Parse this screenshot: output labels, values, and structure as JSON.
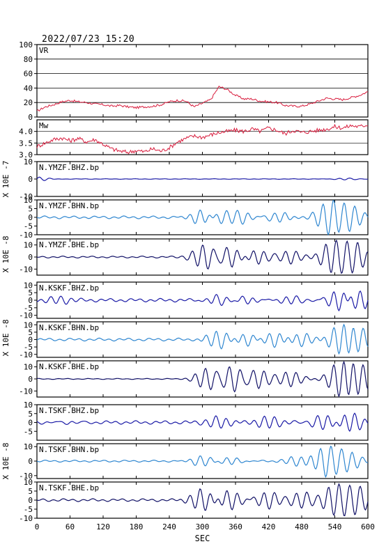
{
  "timestamp": "2022/07/23 15:20",
  "chart_data": {
    "type": "line",
    "xlabel": "SEC",
    "xlim": [
      0,
      600
    ],
    "xticks": [
      "0",
      "60",
      "120",
      "180",
      "240",
      "300",
      "360",
      "420",
      "480",
      "540",
      "600"
    ],
    "panels": [
      {
        "label": "VR",
        "ylim": [
          0,
          100
        ],
        "yticks": [
          "100",
          "80",
          "60",
          "40",
          "20",
          "0"
        ],
        "color": "#d81b3c",
        "series": [
          [
            0,
            8
          ],
          [
            15,
            14
          ],
          [
            30,
            17
          ],
          [
            45,
            21
          ],
          [
            60,
            23
          ],
          [
            75,
            21
          ],
          [
            90,
            20
          ],
          [
            105,
            18
          ],
          [
            120,
            17
          ],
          [
            135,
            15
          ],
          [
            150,
            16
          ],
          [
            165,
            14
          ],
          [
            180,
            13
          ],
          [
            195,
            14
          ],
          [
            210,
            15
          ],
          [
            225,
            17
          ],
          [
            240,
            21
          ],
          [
            255,
            23
          ],
          [
            270,
            22
          ],
          [
            285,
            14
          ],
          [
            300,
            19
          ],
          [
            315,
            24
          ],
          [
            330,
            42
          ],
          [
            345,
            38
          ],
          [
            360,
            30
          ],
          [
            375,
            25
          ],
          [
            390,
            25
          ],
          [
            405,
            22
          ],
          [
            420,
            21
          ],
          [
            435,
            20
          ],
          [
            450,
            16
          ],
          [
            465,
            15
          ],
          [
            480,
            15
          ],
          [
            495,
            18
          ],
          [
            510,
            22
          ],
          [
            525,
            26
          ],
          [
            540,
            25
          ],
          [
            555,
            24
          ],
          [
            570,
            27
          ],
          [
            585,
            30
          ],
          [
            600,
            35
          ]
        ]
      },
      {
        "label": "Mw",
        "ylim": [
          3.0,
          4.5
        ],
        "yticks": [
          "4.0",
          "3.5",
          "3.0"
        ],
        "color": "#d81b3c",
        "series": [
          [
            0,
            3.35
          ],
          [
            15,
            3.5
          ],
          [
            30,
            3.65
          ],
          [
            45,
            3.72
          ],
          [
            60,
            3.6
          ],
          [
            75,
            3.7
          ],
          [
            90,
            3.55
          ],
          [
            105,
            3.65
          ],
          [
            120,
            3.45
          ],
          [
            135,
            3.25
          ],
          [
            150,
            3.15
          ],
          [
            165,
            3.1
          ],
          [
            180,
            3.18
          ],
          [
            195,
            3.12
          ],
          [
            210,
            3.25
          ],
          [
            225,
            3.15
          ],
          [
            240,
            3.3
          ],
          [
            255,
            3.55
          ],
          [
            270,
            3.7
          ],
          [
            285,
            3.8
          ],
          [
            300,
            3.75
          ],
          [
            315,
            3.85
          ],
          [
            330,
            3.95
          ],
          [
            345,
            4.0
          ],
          [
            360,
            4.05
          ],
          [
            375,
            4.0
          ],
          [
            390,
            4.1
          ],
          [
            405,
            4.0
          ],
          [
            420,
            4.15
          ],
          [
            435,
            4.05
          ],
          [
            450,
            3.9
          ],
          [
            465,
            4.05
          ],
          [
            480,
            3.95
          ],
          [
            495,
            4.0
          ],
          [
            510,
            4.05
          ],
          [
            525,
            4.1
          ],
          [
            540,
            4.2
          ],
          [
            555,
            4.15
          ],
          [
            570,
            4.25
          ],
          [
            585,
            4.2
          ],
          [
            600,
            4.3
          ]
        ]
      },
      {
        "label": "N.YMZF.BHZ.bp",
        "ylim": [
          -10,
          10
        ],
        "yticks": [
          "10",
          "0",
          "-10"
        ],
        "color": "#1a1aa6",
        "events": [
          {
            "t": 0,
            "a": 1.2
          },
          {
            "t": 560,
            "a": 0.6
          }
        ],
        "bg": 0.15
      },
      {
        "label": "N.YMZF.BHN.bp",
        "ylim": [
          -10,
          10
        ],
        "yticks": [
          "10",
          "5",
          "0",
          "-5",
          "-10"
        ],
        "color": "#2e86d0",
        "events": [
          {
            "t": 300,
            "a": 5
          },
          {
            "t": 330,
            "a": 4
          },
          {
            "t": 370,
            "a": 4
          },
          {
            "t": 440,
            "a": 3
          },
          {
            "t": 530,
            "a": 9
          },
          {
            "t": 570,
            "a": 7
          }
        ],
        "bg": 0.8
      },
      {
        "label": "N.YMZF.BHE.bp",
        "ylim": [
          -15,
          15
        ],
        "yticks": [
          "10",
          "0",
          "-10"
        ],
        "color": "#101066",
        "events": [
          {
            "t": 305,
            "a": 10
          },
          {
            "t": 350,
            "a": 9
          },
          {
            "t": 400,
            "a": 6
          },
          {
            "t": 460,
            "a": 6
          },
          {
            "t": 535,
            "a": 13
          },
          {
            "t": 575,
            "a": 12
          }
        ],
        "bg": 0.8
      },
      {
        "label": "N.KSKF.BHZ.bp",
        "ylim": [
          -12,
          12
        ],
        "yticks": [
          "10",
          "5",
          "0",
          "-5",
          "-10"
        ],
        "color": "#1a1aa6",
        "events": [
          {
            "t": 40,
            "a": 2
          },
          {
            "t": 330,
            "a": 4
          },
          {
            "t": 380,
            "a": 3
          },
          {
            "t": 460,
            "a": 3
          },
          {
            "t": 550,
            "a": 9
          },
          {
            "t": 580,
            "a": 8
          }
        ],
        "bg": 1.2
      },
      {
        "label": "N.KSKF.BHN.bp",
        "ylim": [
          -12,
          12
        ],
        "yticks": [
          "10",
          "5",
          "0",
          "-5",
          "-10"
        ],
        "color": "#2e86d0",
        "events": [
          {
            "t": 330,
            "a": 6
          },
          {
            "t": 380,
            "a": 5
          },
          {
            "t": 430,
            "a": 5
          },
          {
            "t": 480,
            "a": 4
          },
          {
            "t": 550,
            "a": 10
          },
          {
            "t": 585,
            "a": 8
          }
        ],
        "bg": 1.0
      },
      {
        "label": "N.KSKF.BHE.bp",
        "ylim": [
          -15,
          15
        ],
        "yticks": [
          "10",
          "0",
          "-10"
        ],
        "color": "#101066",
        "events": [
          {
            "t": 310,
            "a": 9
          },
          {
            "t": 355,
            "a": 11
          },
          {
            "t": 400,
            "a": 8
          },
          {
            "t": 460,
            "a": 6
          },
          {
            "t": 550,
            "a": 14
          },
          {
            "t": 585,
            "a": 12
          }
        ],
        "bg": 0.4
      },
      {
        "label": "N.TSKF.BHZ.bp",
        "ylim": [
          -10,
          10
        ],
        "yticks": [
          "10",
          "5",
          "0",
          "-5"
        ],
        "color": "#1a1aa6",
        "events": [
          {
            "t": 60,
            "a": 1.5
          },
          {
            "t": 330,
            "a": 3
          },
          {
            "t": 420,
            "a": 3
          },
          {
            "t": 520,
            "a": 5
          },
          {
            "t": 570,
            "a": 5
          }
        ],
        "bg": 1.0
      },
      {
        "label": "N.TSKF.BHN.bp",
        "ylim": [
          -12,
          12
        ],
        "yticks": [
          "10",
          "0",
          "-10"
        ],
        "color": "#2e86d0",
        "events": [
          {
            "t": 300,
            "a": 4
          },
          {
            "t": 350,
            "a": 3
          },
          {
            "t": 470,
            "a": 3
          },
          {
            "t": 525,
            "a": 10
          },
          {
            "t": 565,
            "a": 6
          }
        ],
        "bg": 0.7
      },
      {
        "label": "N.TSKF.BHE.bp",
        "ylim": [
          -10,
          10
        ],
        "yticks": [
          "10",
          "5",
          "0",
          "-5",
          "-10"
        ],
        "color": "#101066",
        "events": [
          {
            "t": 300,
            "a": 6
          },
          {
            "t": 350,
            "a": 6
          },
          {
            "t": 420,
            "a": 5
          },
          {
            "t": 480,
            "a": 5
          },
          {
            "t": 540,
            "a": 8
          },
          {
            "t": 580,
            "a": 7
          }
        ],
        "bg": 0.8
      }
    ],
    "ylabels": [
      "X 10E -7",
      "X 10E -8",
      "X 10E -8",
      "X 10E -8"
    ]
  }
}
